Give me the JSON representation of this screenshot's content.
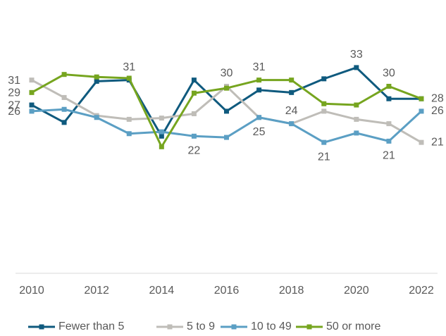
{
  "chart_data": {
    "type": "line",
    "x": [
      2010,
      2011,
      2012,
      2013,
      2014,
      2015,
      2016,
      2017,
      2018,
      2019,
      2020,
      2021,
      2022
    ],
    "xlim": [
      2010,
      2022
    ],
    "xticks": [
      2010,
      2012,
      2014,
      2016,
      2018,
      2020,
      2022
    ],
    "ylim": [
      0,
      40
    ],
    "series": [
      {
        "name": "Fewer than 5",
        "color": "#0f5a7e",
        "values": [
          27,
          24.2,
          30.8,
          31,
          22,
          31,
          26,
          29.4,
          29,
          31.2,
          33,
          28,
          28
        ],
        "value_labels": [
          "27",
          null,
          null,
          "31",
          null,
          null,
          null,
          null,
          null,
          null,
          "33",
          null,
          null
        ]
      },
      {
        "name": "5 to 9",
        "color": "#bfbdb8",
        "values": [
          31,
          28.2,
          25.3,
          24.7,
          24.9,
          25.6,
          30,
          25,
          24,
          26,
          24.7,
          24,
          21
        ],
        "value_labels": [
          "31",
          null,
          null,
          null,
          null,
          null,
          "30",
          "25",
          "24",
          null,
          null,
          null,
          "21"
        ]
      },
      {
        "name": "10 to 49",
        "color": "#5b9fc4",
        "values": [
          26,
          26.3,
          25,
          22.4,
          22.7,
          22,
          21.8,
          25,
          24,
          21,
          22.5,
          21.2,
          26
        ],
        "value_labels": [
          "26",
          null,
          null,
          null,
          null,
          "22",
          null,
          null,
          null,
          "21",
          null,
          "21",
          "26"
        ]
      },
      {
        "name": "50 or more",
        "color": "#76a51f",
        "values": [
          29,
          31.9,
          31.5,
          31.3,
          20.3,
          28.9,
          29.7,
          31,
          31,
          27.2,
          27,
          30,
          28
        ],
        "value_labels": [
          "29",
          null,
          null,
          null,
          null,
          null,
          null,
          "31",
          null,
          null,
          null,
          "30",
          "28"
        ]
      }
    ]
  }
}
